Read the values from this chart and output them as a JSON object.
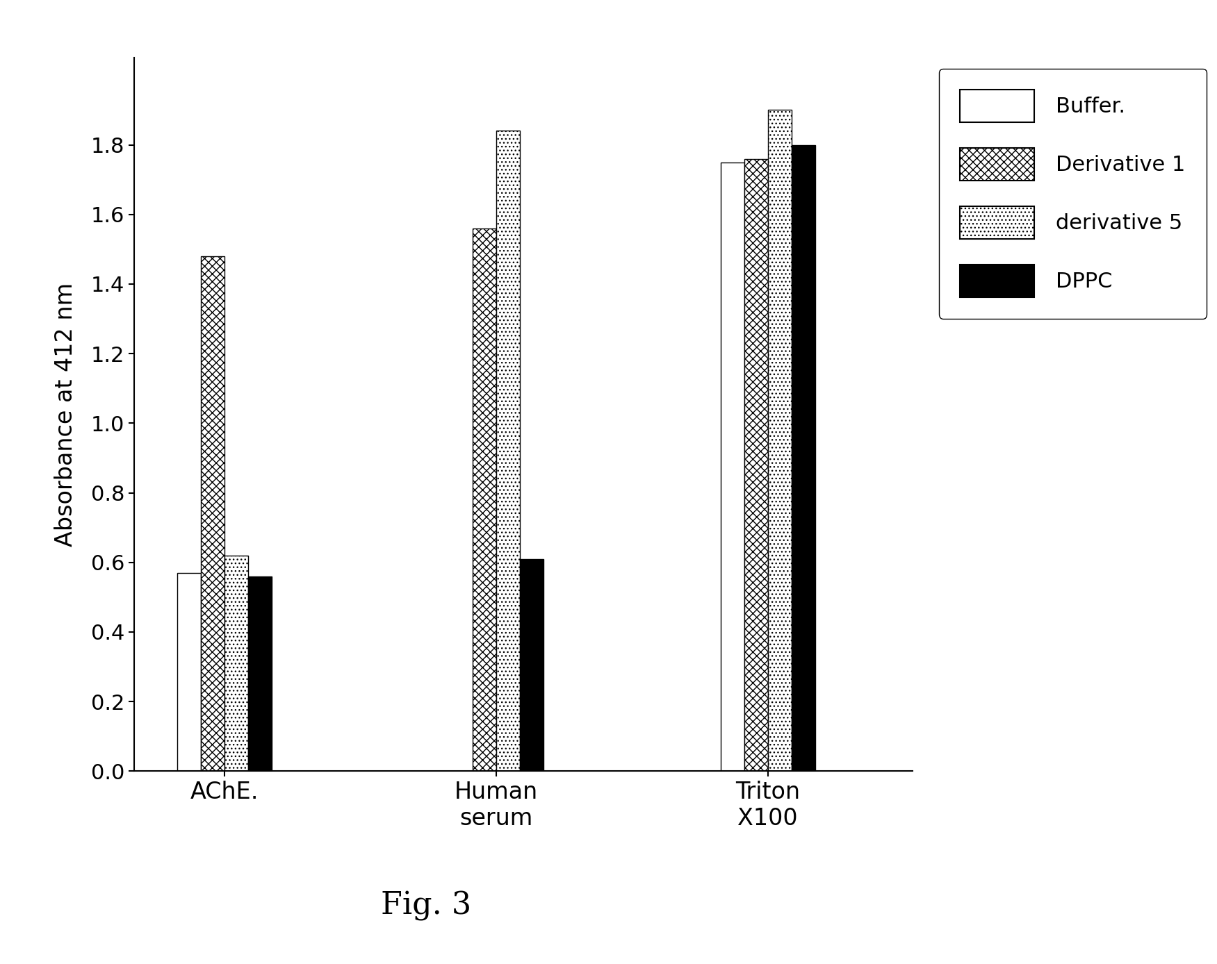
{
  "categories": [
    "AChE.",
    "Human\nserum",
    "Triton\nX100"
  ],
  "series": {
    "Buffer.": [
      0.57,
      0.0,
      1.75
    ],
    "Derivative 1": [
      1.48,
      1.56,
      1.76
    ],
    "derivative 5": [
      0.62,
      1.84,
      1.9
    ],
    "DPPC": [
      0.56,
      0.61,
      1.8
    ]
  },
  "ylabel": "Absorbance at 412 nm",
  "ylim": [
    0.0,
    2.05
  ],
  "yticks": [
    0.0,
    0.2,
    0.4,
    0.6,
    0.8,
    1.0,
    1.2,
    1.4,
    1.6,
    1.8
  ],
  "legend_labels": [
    "Buffer.",
    "Derivative 1",
    "derivative 5",
    "DPPC"
  ],
  "fig_caption": "Fig. 3",
  "bar_width": 0.13,
  "figsize": [
    17.51,
    13.88
  ],
  "dpi": 100
}
